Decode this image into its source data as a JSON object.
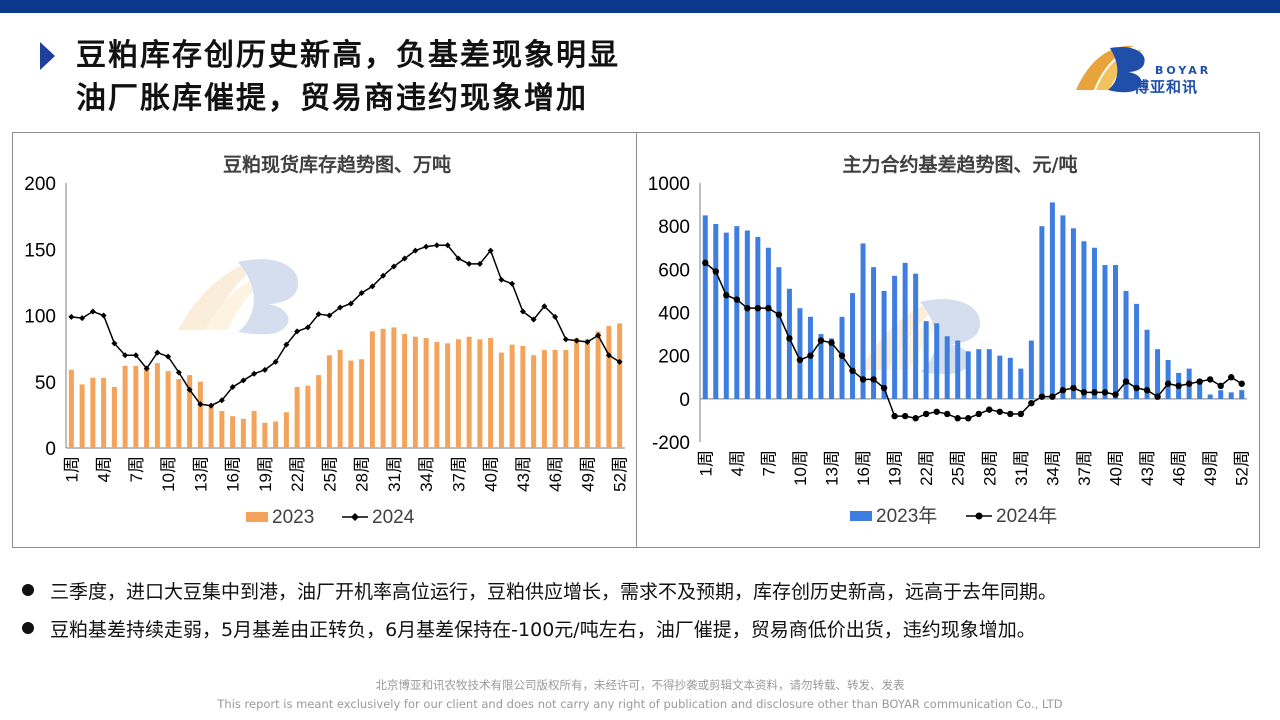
{
  "header": {
    "title_line1": "豆粕库存创历史新高，负基差现象明显",
    "title_line2": "油厂胀库催提，贸易商违约现象增加"
  },
  "logo": {
    "word": "BOYAR",
    "cn": "博亚和讯"
  },
  "colors": {
    "bar_left": "#f4a35b",
    "bar_right": "#3d7ee0",
    "line": "#000000",
    "accent": "#1f3f9a"
  },
  "chart_data": [
    {
      "type": "bar",
      "title": "豆粕现货库存趋势图、万吨",
      "ylim": [
        0,
        200
      ],
      "yticks": [
        "0",
        "50",
        "100",
        "150",
        "200"
      ],
      "categories": [
        "1周",
        "2周",
        "3周",
        "4周",
        "5周",
        "6周",
        "7周",
        "8周",
        "9周",
        "10周",
        "11周",
        "12周",
        "13周",
        "14周",
        "15周",
        "16周",
        "17周",
        "18周",
        "19周",
        "20周",
        "21周",
        "22周",
        "23周",
        "24周",
        "25周",
        "26周",
        "27周",
        "28周",
        "29周",
        "30周",
        "31周",
        "32周",
        "33周",
        "34周",
        "35周",
        "36周",
        "37周",
        "38周",
        "39周",
        "40周",
        "41周",
        "42周",
        "43周",
        "44周",
        "45周",
        "46周",
        "47周",
        "48周",
        "49周",
        "50周",
        "51周",
        "52周"
      ],
      "xtick_labels": [
        "1周",
        "4周",
        "7周",
        "10周",
        "13周",
        "16周",
        "19周",
        "22周",
        "25周",
        "28周",
        "31周",
        "34周",
        "37周",
        "40周",
        "43周",
        "46周",
        "49周",
        "52周"
      ],
      "series": [
        {
          "name": "2023",
          "kind": "bar",
          "values": [
            59,
            48,
            53,
            53,
            46,
            62,
            62,
            60,
            64,
            58,
            52,
            55,
            50,
            32,
            28,
            24,
            22,
            28,
            19,
            20,
            27,
            46,
            47,
            55,
            70,
            74,
            66,
            67,
            88,
            90,
            91,
            86,
            84,
            83,
            80,
            79,
            82,
            84,
            82,
            83,
            72,
            78,
            77,
            70,
            74,
            74,
            74,
            83,
            82,
            88,
            92,
            94
          ]
        },
        {
          "name": "2024",
          "kind": "line",
          "values": [
            99,
            98,
            103,
            100,
            79,
            70,
            70,
            60,
            72,
            69,
            57,
            44,
            33,
            32,
            36,
            46,
            51,
            56,
            59,
            65,
            78,
            88,
            91,
            101,
            100,
            106,
            109,
            117,
            122,
            130,
            137,
            143,
            149,
            152,
            153,
            153,
            143,
            139,
            139,
            149,
            127,
            124,
            103,
            97,
            107,
            99,
            82,
            81,
            80,
            85,
            70,
            65
          ]
        }
      ]
    },
    {
      "type": "bar",
      "title": "主力合约基差趋势图、元/吨",
      "ylim": [
        -200,
        1000
      ],
      "yticks": [
        "-200",
        "0",
        "200",
        "400",
        "600",
        "800",
        "1000"
      ],
      "categories": [
        "1周",
        "2周",
        "3周",
        "4周",
        "5周",
        "6周",
        "7周",
        "8周",
        "9周",
        "10周",
        "11周",
        "12周",
        "13周",
        "14周",
        "15周",
        "16周",
        "17周",
        "18周",
        "19周",
        "20周",
        "21周",
        "22周",
        "23周",
        "24周",
        "25周",
        "26周",
        "27周",
        "28周",
        "29周",
        "30周",
        "31周",
        "32周",
        "33周",
        "34周",
        "35周",
        "36周",
        "37周",
        "38周",
        "39周",
        "40周",
        "41周",
        "42周",
        "43周",
        "44周",
        "45周",
        "46周",
        "47周",
        "48周",
        "49周",
        "50周",
        "51周",
        "52周"
      ],
      "xtick_labels": [
        "1周",
        "4周",
        "7周",
        "10周",
        "13周",
        "16周",
        "19周",
        "22周",
        "25周",
        "28周",
        "31周",
        "34周",
        "37周",
        "40周",
        "43周",
        "46周",
        "49周",
        "52周"
      ],
      "series": [
        {
          "name": "2023年",
          "kind": "bar",
          "values": [
            850,
            810,
            770,
            800,
            780,
            750,
            700,
            610,
            510,
            420,
            380,
            300,
            280,
            380,
            490,
            720,
            610,
            500,
            570,
            630,
            580,
            360,
            350,
            290,
            270,
            220,
            230,
            230,
            200,
            190,
            140,
            270,
            800,
            910,
            850,
            790,
            730,
            700,
            620,
            620,
            500,
            440,
            320,
            230,
            180,
            120,
            140,
            90,
            20,
            40,
            30,
            40
          ]
        },
        {
          "name": "2024年",
          "kind": "line",
          "values": [
            630,
            590,
            480,
            460,
            420,
            420,
            420,
            390,
            280,
            180,
            200,
            270,
            260,
            200,
            130,
            90,
            90,
            50,
            -80,
            -80,
            -90,
            -70,
            -60,
            -70,
            -90,
            -90,
            -70,
            -50,
            -60,
            -70,
            -70,
            -20,
            10,
            10,
            40,
            50,
            30,
            30,
            30,
            20,
            80,
            50,
            40,
            10,
            70,
            60,
            70,
            80,
            90,
            60,
            100,
            70
          ]
        }
      ]
    }
  ],
  "bullets": [
    "三季度，进口大豆集中到港，油厂开机率高位运行，豆粕供应增长，需求不及预期，库存创历史新高，远高于去年同期。",
    "豆粕基差持续走弱，5月基差由正转负，6月基差保持在-100元/吨左右，油厂催提，贸易商低价出货，违约现象增加。"
  ],
  "footer": {
    "line1": "北京博亚和讯农牧技术有限公司版权所有，未经许可，不得抄袭或剪辑文本资料，请勿转载、转发、发表",
    "line2": "This report is meant exclusively for our client and does not carry any right of publication and disclosure other than BOYAR communication Co., LTD"
  }
}
